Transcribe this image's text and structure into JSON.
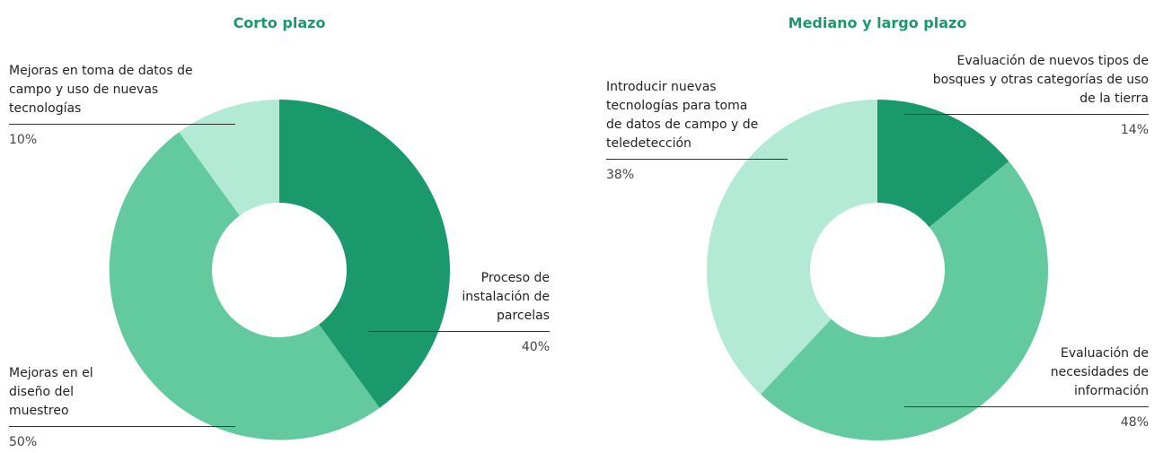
{
  "chart_data": [
    {
      "type": "donut",
      "title": "Corto plazo",
      "categories": [
        "Proceso de instalación de parcelas",
        "Mejoras en el diseño del muestreo",
        "Mejoras en toma de datos de campo y uso de nuevas tecnologías"
      ],
      "values": [
        40,
        50,
        10
      ],
      "value_labels": [
        "40%",
        "50%",
        "10%"
      ],
      "colors": [
        "#1a9a6c",
        "#63c99e",
        "#b3ead6"
      ]
    },
    {
      "type": "donut",
      "title": "Mediano y largo plazo",
      "categories": [
        "Evaluación de nuevos tipos de bosques y otras categorías de uso de la tierra",
        "Evaluación de necesidades de información",
        "Introducir nuevas tecnologías para toma de datos de campo y de teledetección"
      ],
      "values": [
        14,
        48,
        38
      ],
      "value_labels": [
        "14%",
        "48%",
        "38%"
      ],
      "colors": [
        "#1a9a6c",
        "#63c99e",
        "#b3ead6"
      ]
    }
  ]
}
